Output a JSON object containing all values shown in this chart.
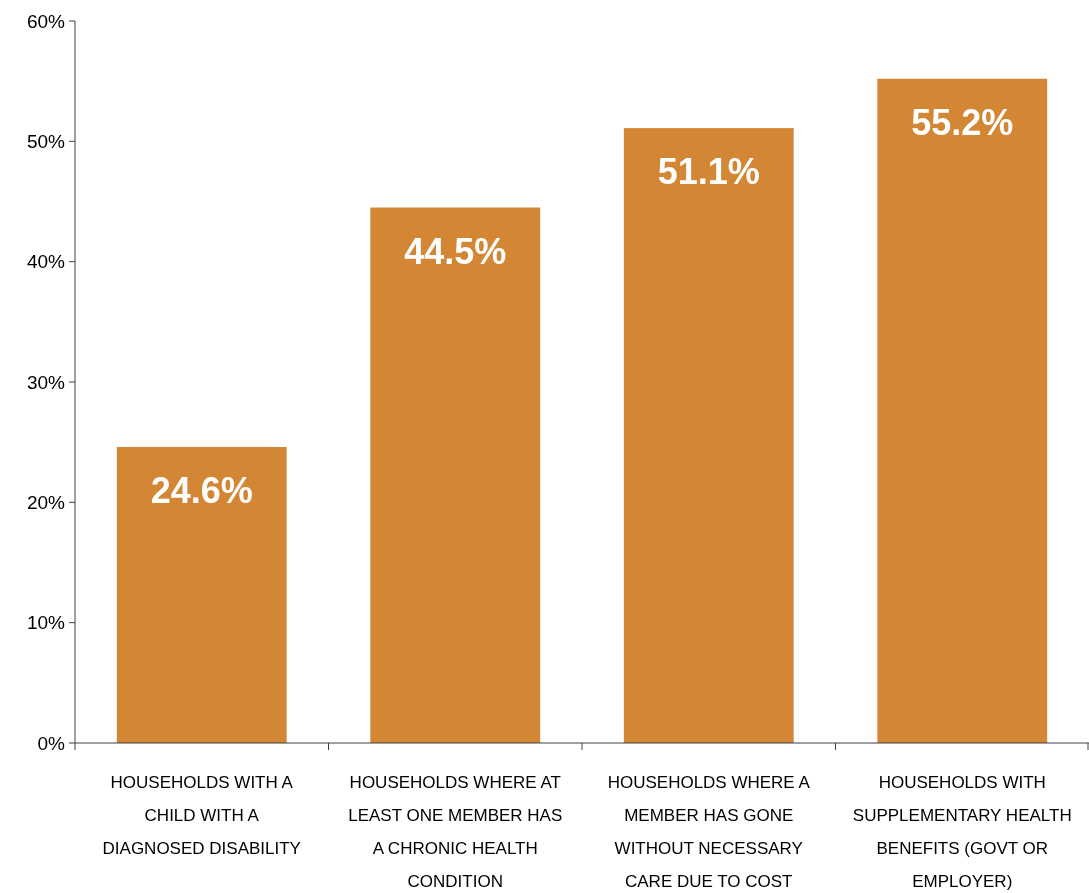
{
  "chart_data": {
    "type": "bar",
    "categories": [
      "HOUSEHOLDS WITH A CHILD WITH A DIAGNOSED DISABILITY",
      "HOUSEHOLDS WHERE AT LEAST ONE MEMBER HAS A CHRONIC HEALTH CONDITION",
      "HOUSEHOLDS WHERE A MEMBER HAS GONE WITHOUT NECESSARY CARE DUE TO COST",
      "HOUSEHOLDS WITH SUPPLEMENTARY HEALTH BENEFITS (GOVT OR EMPLOYER)"
    ],
    "values": [
      24.6,
      44.5,
      51.1,
      55.2
    ],
    "value_labels": [
      "24.6%",
      "44.5%",
      "51.1%",
      "55.2%"
    ],
    "color": "#d38634",
    "ylim": [
      0,
      60
    ],
    "yticks": [
      {
        "value": 0,
        "label": "0%"
      },
      {
        "value": 10,
        "label": "10%"
      },
      {
        "value": 20,
        "label": "20%"
      },
      {
        "value": 30,
        "label": "30%"
      },
      {
        "value": 40,
        "label": "40%"
      },
      {
        "value": 50,
        "label": "50%"
      },
      {
        "value": 60,
        "label": "60%"
      }
    ],
    "grid": false
  }
}
